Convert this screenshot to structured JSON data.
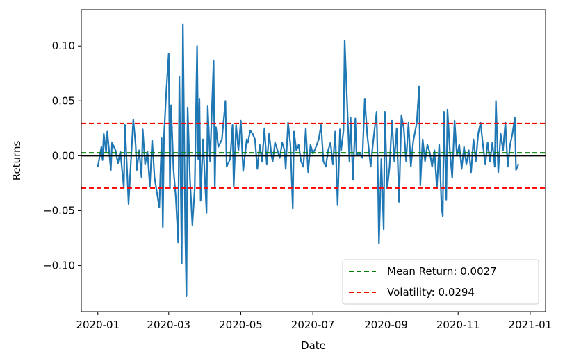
{
  "chart_data": {
    "type": "line",
    "title": "",
    "xlabel": "Date",
    "ylabel": "Returns",
    "xlim": [
      "2019-12-18",
      "2021-01-14"
    ],
    "ylim": [
      -0.142,
      0.133
    ],
    "x_ticks": [
      {
        "date": "2020-01-01",
        "label": "2020-01"
      },
      {
        "date": "2020-03-01",
        "label": "2020-03"
      },
      {
        "date": "2020-05-01",
        "label": "2020-05"
      },
      {
        "date": "2020-07-01",
        "label": "2020-07"
      },
      {
        "date": "2020-09-01",
        "label": "2020-09"
      },
      {
        "date": "2020-11-01",
        "label": "2020-11"
      },
      {
        "date": "2021-01-01",
        "label": "2021-01"
      }
    ],
    "y_ticks": [
      {
        "value": 0.1,
        "label": "0.10"
      },
      {
        "value": 0.05,
        "label": "0.05"
      },
      {
        "value": 0.0,
        "label": "0.00"
      },
      {
        "value": -0.05,
        "label": "−0.05"
      },
      {
        "value": -0.1,
        "label": "−0.10"
      }
    ],
    "grid": false,
    "legend_position": "bottom-right",
    "series": [
      {
        "values": [
          [
            "2020-01-01",
            -0.01
          ],
          [
            "2020-01-04",
            0.008
          ],
          [
            "2020-01-05",
            -0.004
          ],
          [
            "2020-01-06",
            0.02
          ],
          [
            "2020-01-08",
            0.003
          ],
          [
            "2020-01-09",
            0.022
          ],
          [
            "2020-01-12",
            -0.013
          ],
          [
            "2020-01-13",
            0.012
          ],
          [
            "2020-01-16",
            0.005
          ],
          [
            "2020-01-18",
            -0.007
          ],
          [
            "2020-01-20",
            0.004
          ],
          [
            "2020-01-23",
            -0.029
          ],
          [
            "2020-01-24",
            0.028
          ],
          [
            "2020-01-27",
            -0.044
          ],
          [
            "2020-01-29",
            -0.005
          ],
          [
            "2020-01-31",
            0.033
          ],
          [
            "2020-02-02",
            0.01
          ],
          [
            "2020-02-03",
            -0.013
          ],
          [
            "2020-02-05",
            0.005
          ],
          [
            "2020-02-07",
            -0.02
          ],
          [
            "2020-02-08",
            0.024
          ],
          [
            "2020-02-10",
            -0.008
          ],
          [
            "2020-02-12",
            0.004
          ],
          [
            "2020-02-14",
            -0.028
          ],
          [
            "2020-02-16",
            0.014
          ],
          [
            "2020-02-18",
            -0.02
          ],
          [
            "2020-02-22",
            -0.047
          ],
          [
            "2020-02-24",
            0.016
          ],
          [
            "2020-02-25",
            -0.065
          ],
          [
            "2020-02-26",
            0.018
          ],
          [
            "2020-02-28",
            0.06
          ],
          [
            "2020-03-01",
            0.093
          ],
          [
            "2020-03-02",
            -0.03
          ],
          [
            "2020-03-03",
            0.046
          ],
          [
            "2020-03-05",
            -0.012
          ],
          [
            "2020-03-07",
            -0.038
          ],
          [
            "2020-03-09",
            -0.079
          ],
          [
            "2020-03-10",
            0.072
          ],
          [
            "2020-03-12",
            -0.098
          ],
          [
            "2020-03-13",
            0.12
          ],
          [
            "2020-03-15",
            -0.07
          ],
          [
            "2020-03-16",
            -0.128
          ],
          [
            "2020-03-17",
            0.044
          ],
          [
            "2020-03-19",
            -0.022
          ],
          [
            "2020-03-21",
            -0.063
          ],
          [
            "2020-03-23",
            -0.03
          ],
          [
            "2020-03-25",
            0.1
          ],
          [
            "2020-03-26",
            -0.003
          ],
          [
            "2020-03-27",
            0.052
          ],
          [
            "2020-03-28",
            -0.041
          ],
          [
            "2020-03-30",
            0.015
          ],
          [
            "2020-04-02",
            -0.052
          ],
          [
            "2020-04-03",
            0.045
          ],
          [
            "2020-04-05",
            -0.005
          ],
          [
            "2020-04-08",
            0.087
          ],
          [
            "2020-04-09",
            -0.03
          ],
          [
            "2020-04-10",
            0.026
          ],
          [
            "2020-04-12",
            0.008
          ],
          [
            "2020-04-15",
            0.015
          ],
          [
            "2020-04-18",
            0.05
          ],
          [
            "2020-04-19",
            -0.01
          ],
          [
            "2020-04-22",
            -0.003
          ],
          [
            "2020-04-24",
            0.028
          ],
          [
            "2020-04-25",
            -0.028
          ],
          [
            "2020-04-27",
            0.028
          ],
          [
            "2020-04-29",
            0.005
          ],
          [
            "2020-05-01",
            0.032
          ],
          [
            "2020-05-03",
            -0.014
          ],
          [
            "2020-05-06",
            0.015
          ],
          [
            "2020-05-07",
            0.012
          ],
          [
            "2020-05-09",
            0.023
          ],
          [
            "2020-05-11",
            0.02
          ],
          [
            "2020-05-13",
            0.015
          ],
          [
            "2020-05-15",
            -0.012
          ],
          [
            "2020-05-17",
            0.01
          ],
          [
            "2020-05-19",
            -0.005
          ],
          [
            "2020-05-21",
            0.025
          ],
          [
            "2020-05-23",
            -0.008
          ],
          [
            "2020-05-25",
            0.02
          ],
          [
            "2020-05-27",
            0.0
          ],
          [
            "2020-05-28",
            -0.005
          ],
          [
            "2020-05-30",
            0.012
          ],
          [
            "2020-06-01",
            0.005
          ],
          [
            "2020-06-03",
            -0.002
          ],
          [
            "2020-06-05",
            0.012
          ],
          [
            "2020-06-07",
            0.005
          ],
          [
            "2020-06-08",
            -0.012
          ],
          [
            "2020-06-10",
            0.03
          ],
          [
            "2020-06-12",
            0.01
          ],
          [
            "2020-06-14",
            -0.048
          ],
          [
            "2020-06-15",
            0.022
          ],
          [
            "2020-06-17",
            0.005
          ],
          [
            "2020-06-19",
            0.01
          ],
          [
            "2020-06-21",
            -0.005
          ],
          [
            "2020-06-23",
            -0.01
          ],
          [
            "2020-06-25",
            0.025
          ],
          [
            "2020-06-27",
            -0.015
          ],
          [
            "2020-06-29",
            0.01
          ],
          [
            "2020-07-01",
            0.002
          ],
          [
            "2020-07-03",
            0.006
          ],
          [
            "2020-07-06",
            0.015
          ],
          [
            "2020-07-08",
            0.028
          ],
          [
            "2020-07-10",
            -0.005
          ],
          [
            "2020-07-12",
            -0.01
          ],
          [
            "2020-07-14",
            0.005
          ],
          [
            "2020-07-16",
            0.012
          ],
          [
            "2020-07-18",
            -0.008
          ],
          [
            "2020-07-20",
            0.022
          ],
          [
            "2020-07-22",
            -0.045
          ],
          [
            "2020-07-24",
            0.024
          ],
          [
            "2020-07-25",
            0.005
          ],
          [
            "2020-07-27",
            0.023
          ],
          [
            "2020-07-28",
            0.105
          ],
          [
            "2020-07-30",
            0.05
          ],
          [
            "2020-08-01",
            -0.005
          ],
          [
            "2020-08-02",
            0.035
          ],
          [
            "2020-08-04",
            -0.022
          ],
          [
            "2020-08-06",
            0.034
          ],
          [
            "2020-08-07",
            0.0
          ],
          [
            "2020-08-09",
            0.003
          ],
          [
            "2020-08-12",
            -0.002
          ],
          [
            "2020-08-14",
            0.052
          ],
          [
            "2020-08-16",
            0.02
          ],
          [
            "2020-08-19",
            -0.01
          ],
          [
            "2020-08-21",
            0.012
          ],
          [
            "2020-08-24",
            0.04
          ],
          [
            "2020-08-25",
            -0.01
          ],
          [
            "2020-08-26",
            -0.08
          ],
          [
            "2020-08-28",
            -0.003
          ],
          [
            "2020-08-30",
            -0.067
          ],
          [
            "2020-08-31",
            0.04
          ],
          [
            "2020-09-02",
            -0.03
          ],
          [
            "2020-09-04",
            -0.01
          ],
          [
            "2020-09-06",
            0.032
          ],
          [
            "2020-09-08",
            -0.005
          ],
          [
            "2020-09-10",
            0.025
          ],
          [
            "2020-09-12",
            -0.042
          ],
          [
            "2020-09-14",
            0.037
          ],
          [
            "2020-09-16",
            0.025
          ],
          [
            "2020-09-18",
            -0.005
          ],
          [
            "2020-09-20",
            0.03
          ],
          [
            "2020-09-22",
            -0.01
          ],
          [
            "2020-09-24",
            0.013
          ],
          [
            "2020-09-27",
            0.03
          ],
          [
            "2020-09-29",
            0.063
          ],
          [
            "2020-09-30",
            -0.027
          ],
          [
            "2020-10-02",
            0.015
          ],
          [
            "2020-10-04",
            -0.005
          ],
          [
            "2020-10-06",
            0.01
          ],
          [
            "2020-10-08",
            0.003
          ],
          [
            "2020-10-10",
            -0.01
          ],
          [
            "2020-10-12",
            0.005
          ],
          [
            "2020-10-14",
            -0.03
          ],
          [
            "2020-10-16",
            0.01
          ],
          [
            "2020-10-18",
            -0.047
          ],
          [
            "2020-10-19",
            -0.055
          ],
          [
            "2020-10-20",
            0.04
          ],
          [
            "2020-10-22",
            -0.04
          ],
          [
            "2020-10-23",
            0.042
          ],
          [
            "2020-10-25",
            0.005
          ],
          [
            "2020-10-27",
            -0.02
          ],
          [
            "2020-10-29",
            0.032
          ],
          [
            "2020-10-31",
            0.0
          ],
          [
            "2020-11-02",
            0.01
          ],
          [
            "2020-11-04",
            -0.012
          ],
          [
            "2020-11-06",
            0.008
          ],
          [
            "2020-11-08",
            -0.008
          ],
          [
            "2020-11-10",
            0.005
          ],
          [
            "2020-11-12",
            -0.015
          ],
          [
            "2020-11-14",
            0.015
          ],
          [
            "2020-11-16",
            -0.005
          ],
          [
            "2020-11-18",
            0.02
          ],
          [
            "2020-11-20",
            0.03
          ],
          [
            "2020-11-22",
            0.01
          ],
          [
            "2020-11-24",
            -0.008
          ],
          [
            "2020-11-26",
            0.012
          ],
          [
            "2020-11-28",
            -0.005
          ],
          [
            "2020-11-30",
            0.012
          ],
          [
            "2020-12-02",
            -0.01
          ],
          [
            "2020-12-03",
            0.05
          ],
          [
            "2020-12-05",
            -0.015
          ],
          [
            "2020-12-07",
            0.02
          ],
          [
            "2020-12-09",
            0.005
          ],
          [
            "2020-12-11",
            0.03
          ],
          [
            "2020-12-13",
            -0.01
          ],
          [
            "2020-12-15",
            0.01
          ],
          [
            "2020-12-17",
            0.02
          ],
          [
            "2020-12-19",
            0.035
          ],
          [
            "2020-12-20",
            -0.013
          ],
          [
            "2020-12-22",
            -0.008
          ]
        ],
        "color": "#1f77b4"
      }
    ],
    "reference_lines": [
      {
        "name": "Mean Return: 0.0027",
        "value": 0.0027,
        "color": "#008000",
        "style": "dashed",
        "in_legend": true
      },
      {
        "name": "Volatility: 0.0294",
        "value": 0.0294,
        "color": "#ff0000",
        "style": "dashed",
        "in_legend": true
      },
      {
        "name": "",
        "value": -0.0294,
        "color": "#ff0000",
        "style": "dashed",
        "in_legend": false
      },
      {
        "name": "",
        "value": 0.0,
        "color": "#000000",
        "style": "solid",
        "in_legend": false
      }
    ]
  }
}
